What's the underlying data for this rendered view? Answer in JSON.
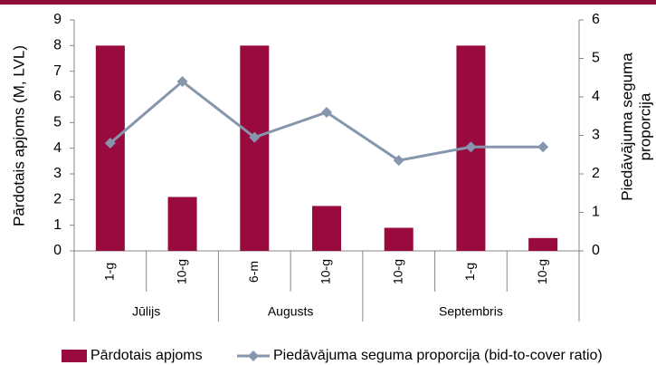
{
  "chart_data": {
    "type": "bar-line",
    "groups": [
      {
        "name": "Jūlijs",
        "categories": [
          "1-g",
          "10-g"
        ]
      },
      {
        "name": "Augusts",
        "categories": [
          "6-m",
          "10-g"
        ]
      },
      {
        "name": "Septembris",
        "categories": [
          "10-g",
          "1-g",
          "10-g"
        ]
      }
    ],
    "series": [
      {
        "name": "Pārdotais apjoms",
        "type": "bar",
        "color": "#990a3f",
        "values": [
          8,
          2.1,
          8,
          1.75,
          0.9,
          8,
          0.5
        ]
      },
      {
        "name": "Piedāvājuma seguma proporcija (bid-to-cover ratio)",
        "type": "line",
        "axis": "y2",
        "color": "#8696ad",
        "values": [
          2.8,
          4.4,
          2.95,
          3.6,
          2.35,
          2.7,
          2.7
        ]
      }
    ],
    "ylabel": "Pārdotais apjoms (M, LVL)",
    "y2label": [
      "Piedāvājuma seguma",
      "proporcija"
    ],
    "ylim": [
      0,
      9
    ],
    "yticks": [
      0,
      1,
      2,
      3,
      4,
      5,
      6,
      7,
      8,
      9
    ],
    "y2lim": [
      0,
      6
    ],
    "y2ticks": [
      0,
      1,
      2,
      3,
      4,
      5,
      6
    ],
    "legend": "bottom"
  }
}
